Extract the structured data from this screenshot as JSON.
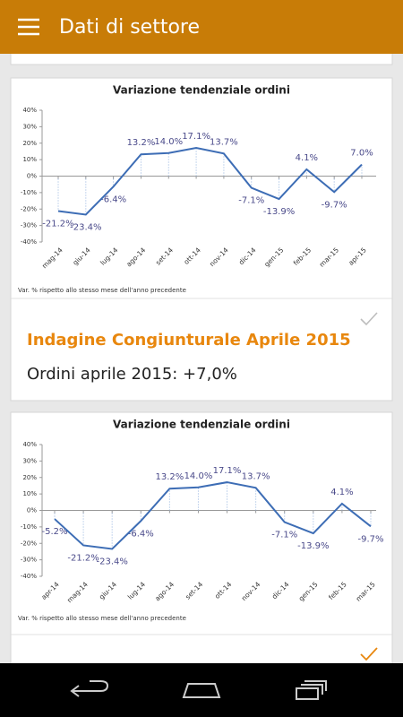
{
  "header": {
    "title": "Dati di settore"
  },
  "cards": [
    {
      "chart": {
        "type": "line",
        "title": "Variazione tendenziale ordini",
        "categories": [
          "mag-14",
          "giu-14",
          "lug-14",
          "ago-14",
          "set-14",
          "ott-14",
          "nov-14",
          "dic-14",
          "gen-15",
          "feb-15",
          "mar-15",
          "apr-15"
        ],
        "values": [
          -21.2,
          -23.4,
          -6.4,
          13.2,
          14.0,
          17.1,
          13.7,
          -7.1,
          -13.9,
          4.1,
          -9.7,
          7.0
        ],
        "value_labels": [
          "-21.2%",
          "-23.4%",
          "-6.4%",
          "13.2%",
          "14.0%",
          "17.1%",
          "13.7%",
          "-7.1%",
          "-13.9%",
          "4.1%",
          "-9.7%",
          "7.0%"
        ],
        "color": "#3d6db5",
        "ylim": [
          -40,
          40
        ],
        "yticks": [
          {
            "value": -40,
            "label": "-40%"
          },
          {
            "value": -30,
            "label": "-30%"
          },
          {
            "value": -20,
            "label": "-20%"
          },
          {
            "value": -10,
            "label": "-10%"
          },
          {
            "value": 0,
            "label": "0%"
          },
          {
            "value": 10,
            "label": "10%"
          },
          {
            "value": 20,
            "label": "20%"
          },
          {
            "value": 30,
            "label": "30%"
          },
          {
            "value": 40,
            "label": "40%"
          }
        ],
        "footnote": "Var. % rispetto allo stesso mese dell'anno precedente"
      },
      "title": "Indagine Congiunturale Aprile 2015",
      "text": "Ordini aprile 2015: +7,0%"
    },
    {
      "chart": {
        "type": "line",
        "title": "Variazione tendenziale ordini",
        "categories": [
          "apr-14",
          "mag-14",
          "giu-14",
          "lug-14",
          "ago-14",
          "set-14",
          "ott-14",
          "nov-14",
          "dic-14",
          "gen-15",
          "feb-15",
          "mar-15"
        ],
        "values": [
          -5.2,
          -21.2,
          -23.4,
          -6.4,
          13.2,
          14.0,
          17.1,
          13.7,
          -7.1,
          -13.9,
          4.1,
          -9.7
        ],
        "value_labels": [
          "-5.2%",
          "-21.2%",
          "-23.4%",
          "-6.4%",
          "13.2%",
          "14.0%",
          "17.1%",
          "13.7%",
          "-7.1%",
          "-13.9%",
          "4.1%",
          "-9.7%"
        ],
        "color": "#3d6db5",
        "ylim": [
          -40,
          40
        ],
        "yticks": [
          {
            "value": -40,
            "label": "-40%"
          },
          {
            "value": -30,
            "label": "-30%"
          },
          {
            "value": -20,
            "label": "-20%"
          },
          {
            "value": -10,
            "label": "-10%"
          },
          {
            "value": 0,
            "label": "0%"
          },
          {
            "value": 10,
            "label": "10%"
          },
          {
            "value": 20,
            "label": "20%"
          },
          {
            "value": 30,
            "label": "30%"
          },
          {
            "value": 40,
            "label": "40%"
          }
        ],
        "footnote": "Var. % rispetto allo stesso mese dell'anno precedente"
      }
    }
  ]
}
